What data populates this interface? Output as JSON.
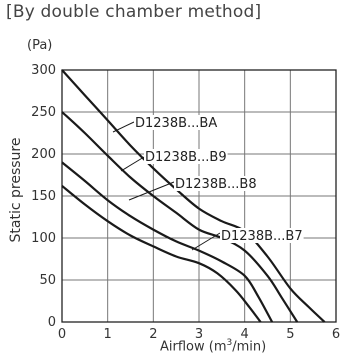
{
  "chart_data": {
    "type": "line",
    "title": "[By double chamber method]",
    "unit_label": "(Pa)",
    "xlabel_pre": "Airflow (m",
    "xlabel_sup": "3",
    "xlabel_post": "/min)",
    "ylabel": "Static pressure",
    "xlim": [
      0,
      6
    ],
    "ylim": [
      0,
      300
    ],
    "x_ticks": [
      "0",
      "1",
      "2",
      "3",
      "4",
      "5",
      "6"
    ],
    "y_ticks": [
      "0",
      "50",
      "100",
      "150",
      "200",
      "250",
      "300"
    ],
    "grid": true,
    "series": [
      {
        "name": "D1238B...BA",
        "points": [
          [
            0,
            300
          ],
          [
            0.5,
            270
          ],
          [
            1,
            240
          ],
          [
            1.5,
            210
          ],
          [
            2,
            183
          ],
          [
            2.5,
            158
          ],
          [
            3,
            135
          ],
          [
            3.5,
            120
          ],
          [
            4,
            108
          ],
          [
            4.5,
            78
          ],
          [
            5,
            40
          ],
          [
            5.4,
            18
          ],
          [
            5.75,
            0
          ]
        ]
      },
      {
        "name": "D1238B...B9",
        "points": [
          [
            0,
            250
          ],
          [
            0.5,
            225
          ],
          [
            1,
            198
          ],
          [
            1.5,
            172
          ],
          [
            2,
            150
          ],
          [
            2.5,
            130
          ],
          [
            3,
            110
          ],
          [
            3.5,
            100
          ],
          [
            4,
            85
          ],
          [
            4.5,
            55
          ],
          [
            4.8,
            30
          ],
          [
            5.15,
            0
          ]
        ]
      },
      {
        "name": "D1238B...B8",
        "points": [
          [
            0,
            190
          ],
          [
            0.5,
            168
          ],
          [
            1,
            145
          ],
          [
            1.5,
            126
          ],
          [
            2,
            110
          ],
          [
            2.5,
            96
          ],
          [
            3,
            85
          ],
          [
            3.5,
            72
          ],
          [
            4,
            55
          ],
          [
            4.3,
            30
          ],
          [
            4.6,
            0
          ]
        ]
      },
      {
        "name": "D1238B...B7",
        "points": [
          [
            0,
            162
          ],
          [
            0.5,
            140
          ],
          [
            1,
            120
          ],
          [
            1.5,
            103
          ],
          [
            2,
            90
          ],
          [
            2.5,
            78
          ],
          [
            3,
            70
          ],
          [
            3.4,
            58
          ],
          [
            3.8,
            38
          ],
          [
            4.1,
            18
          ],
          [
            4.35,
            0
          ]
        ]
      }
    ]
  }
}
